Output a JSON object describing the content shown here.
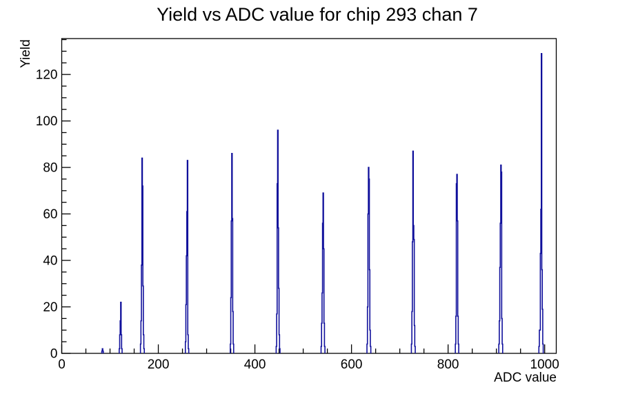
{
  "page": {
    "background_color": "#ffffff",
    "text_color": "#000000"
  },
  "chart_data": {
    "type": "line",
    "style": "step-histogram",
    "title": "Yield vs ADC value for chip 293 chan 7",
    "xlabel": "ADC value",
    "ylabel": "Yield",
    "xlim": [
      0,
      1024
    ],
    "ylim": [
      0,
      135.45
    ],
    "x_major_ticks": [
      0,
      200,
      400,
      600,
      800,
      1000
    ],
    "x_minor_step": 50,
    "y_major_ticks": [
      0,
      20,
      40,
      60,
      80,
      100,
      120
    ],
    "y_minor_step": 5,
    "grid": false,
    "legend": false,
    "line_color": "#0f0f9b",
    "axis_color": "#000000",
    "bin_width": 1,
    "bins": [
      [
        83,
        1
      ],
      [
        84,
        2
      ],
      [
        85,
        1
      ],
      [
        119,
        2
      ],
      [
        120,
        8
      ],
      [
        121,
        14
      ],
      [
        122,
        22
      ],
      [
        123,
        8
      ],
      [
        124,
        2
      ],
      [
        163,
        4
      ],
      [
        164,
        14
      ],
      [
        165,
        38
      ],
      [
        166,
        84
      ],
      [
        167,
        72
      ],
      [
        168,
        29
      ],
      [
        169,
        8
      ],
      [
        170,
        2
      ],
      [
        256,
        5
      ],
      [
        257,
        21
      ],
      [
        258,
        42
      ],
      [
        259,
        61
      ],
      [
        260,
        83
      ],
      [
        261,
        8
      ],
      [
        262,
        2
      ],
      [
        349,
        4
      ],
      [
        350,
        24
      ],
      [
        351,
        57
      ],
      [
        352,
        86
      ],
      [
        353,
        58
      ],
      [
        354,
        18
      ],
      [
        355,
        4
      ],
      [
        444,
        3
      ],
      [
        445,
        17
      ],
      [
        446,
        73
      ],
      [
        447,
        96
      ],
      [
        448,
        54
      ],
      [
        449,
        28
      ],
      [
        450,
        8
      ],
      [
        451,
        2
      ],
      [
        537,
        3
      ],
      [
        538,
        13
      ],
      [
        539,
        26
      ],
      [
        540,
        56
      ],
      [
        541,
        69
      ],
      [
        542,
        45
      ],
      [
        543,
        13
      ],
      [
        544,
        3
      ],
      [
        632,
        4
      ],
      [
        633,
        20
      ],
      [
        634,
        60
      ],
      [
        635,
        80
      ],
      [
        636,
        75
      ],
      [
        637,
        36
      ],
      [
        638,
        10
      ],
      [
        639,
        3
      ],
      [
        724,
        4
      ],
      [
        725,
        18
      ],
      [
        726,
        48
      ],
      [
        727,
        87
      ],
      [
        728,
        55
      ],
      [
        729,
        49
      ],
      [
        730,
        12
      ],
      [
        731,
        3
      ],
      [
        815,
        4
      ],
      [
        816,
        16
      ],
      [
        817,
        73
      ],
      [
        818,
        77
      ],
      [
        819,
        57
      ],
      [
        820,
        16
      ],
      [
        821,
        4
      ],
      [
        905,
        4
      ],
      [
        906,
        14
      ],
      [
        907,
        37
      ],
      [
        908,
        56
      ],
      [
        909,
        81
      ],
      [
        910,
        78
      ],
      [
        911,
        15
      ],
      [
        912,
        4
      ],
      [
        988,
        3
      ],
      [
        989,
        10
      ],
      [
        990,
        10
      ],
      [
        991,
        43
      ],
      [
        992,
        62
      ],
      [
        993,
        129
      ],
      [
        994,
        36
      ],
      [
        995,
        19
      ],
      [
        996,
        4
      ]
    ]
  }
}
